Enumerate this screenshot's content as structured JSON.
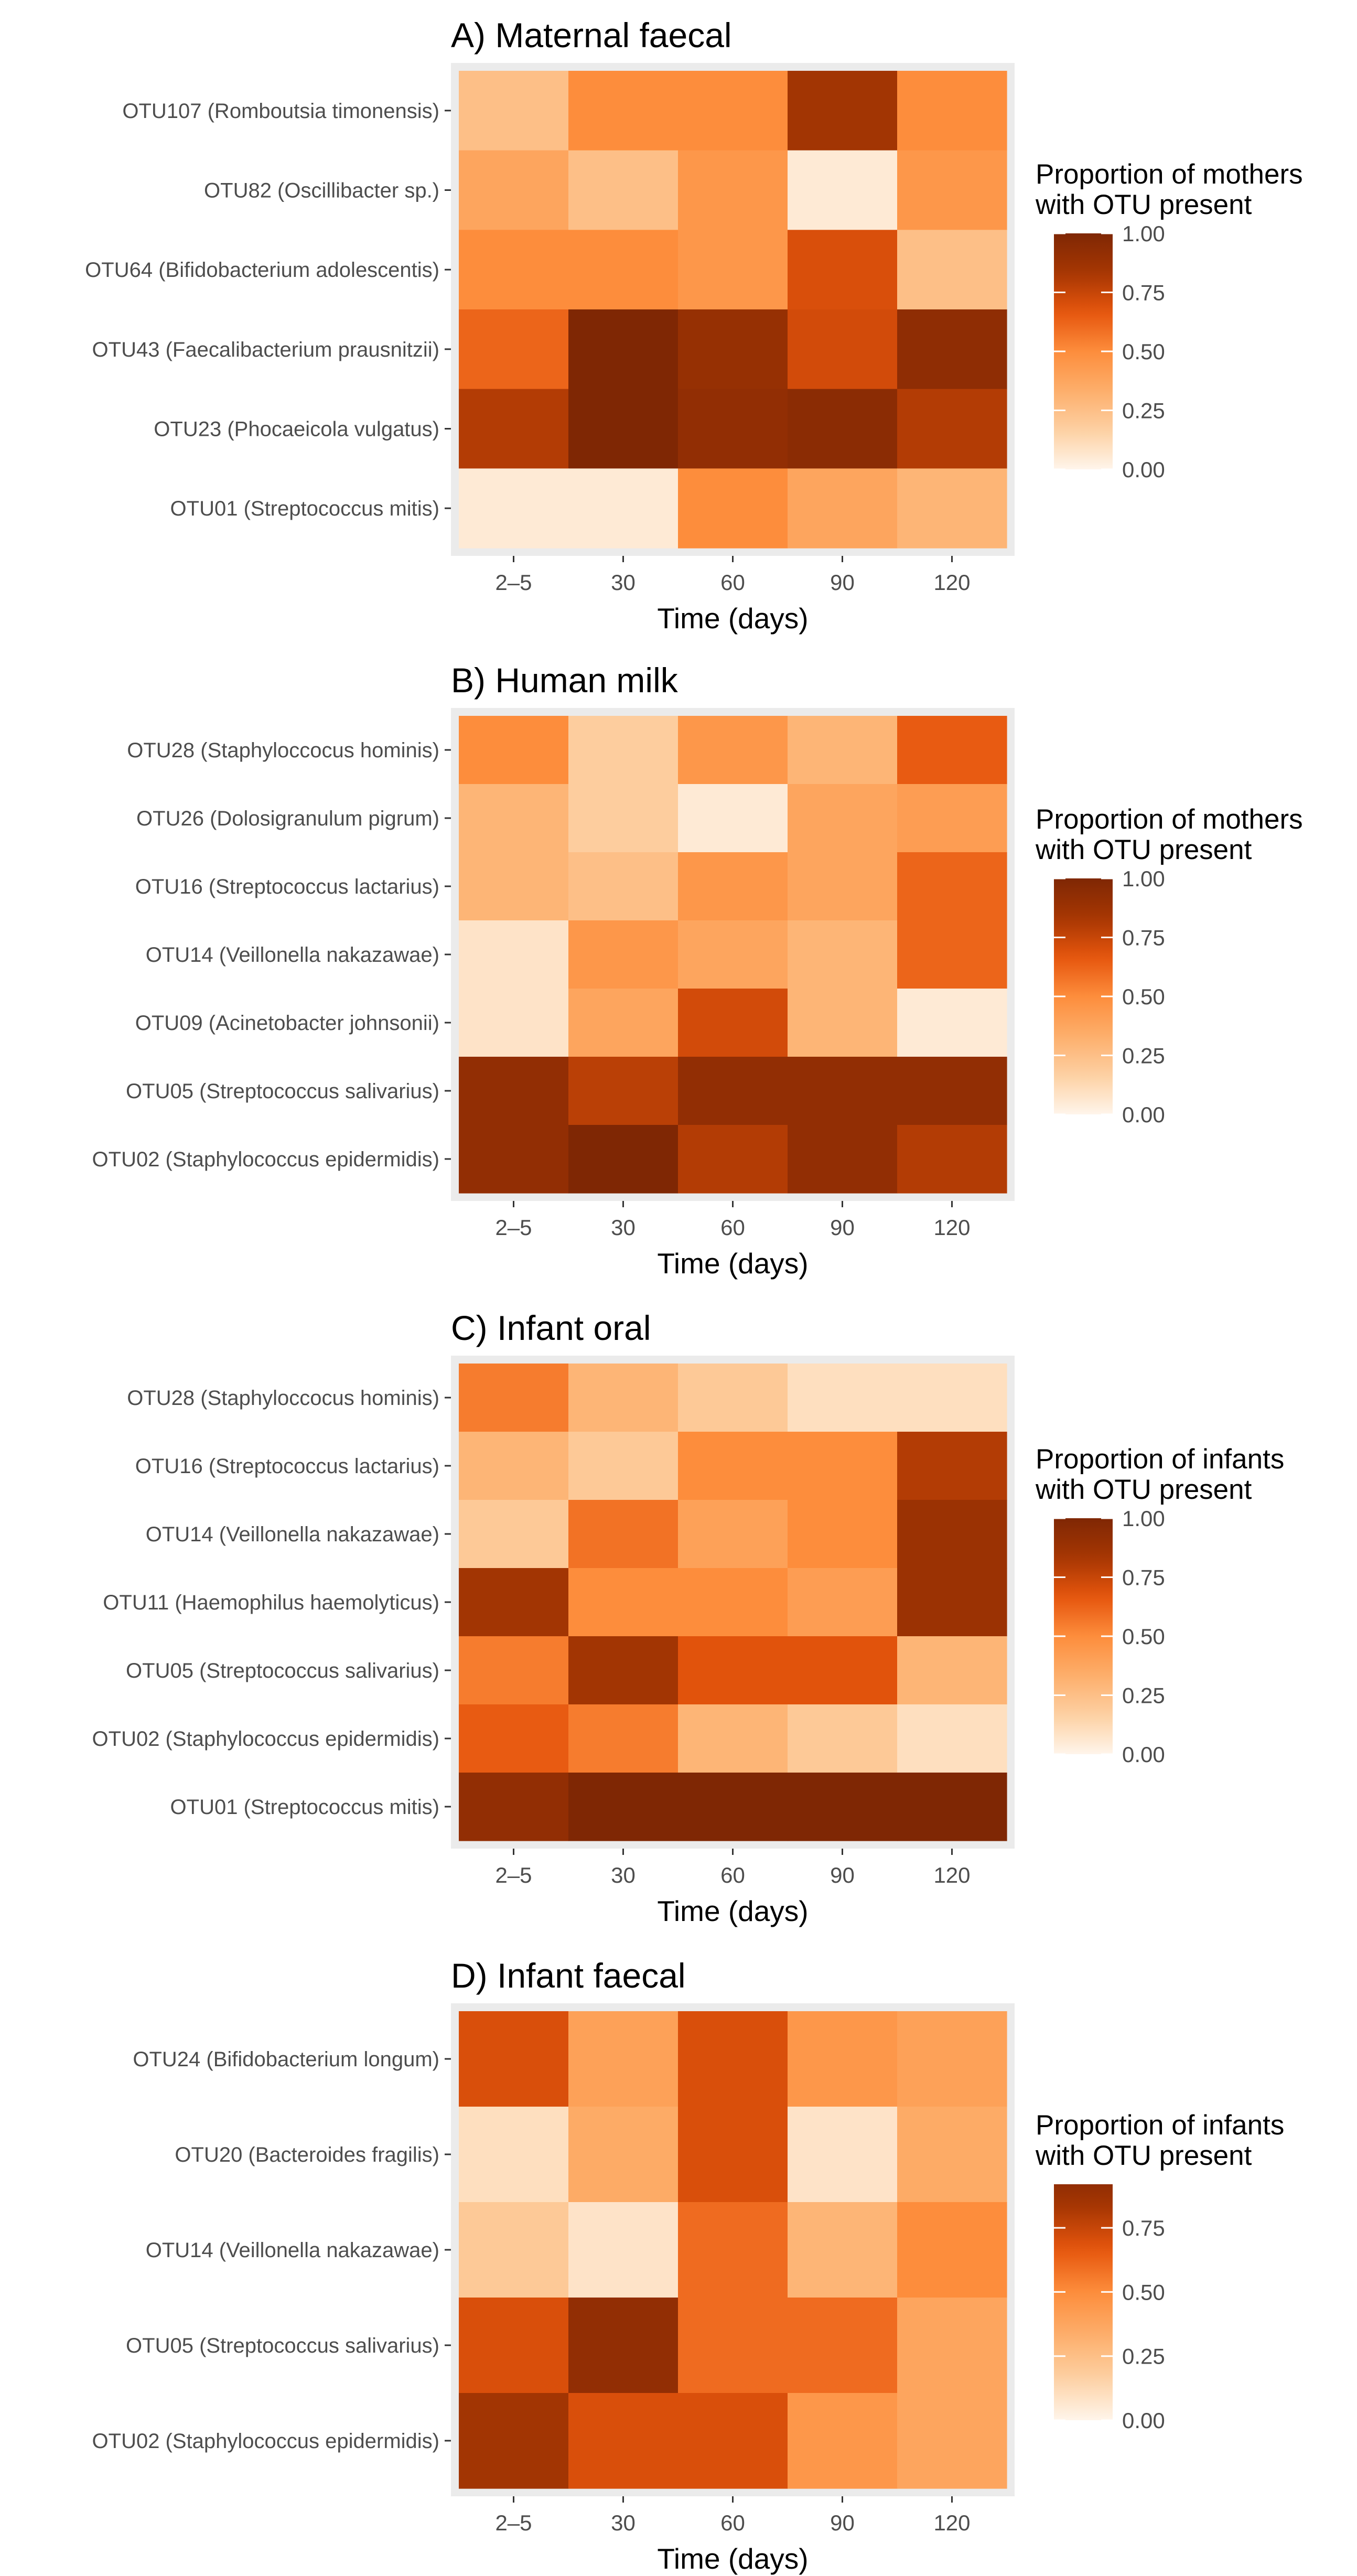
{
  "colors": {
    "scale": [
      "#fff5eb",
      "#fdd0a2",
      "#fdae6b",
      "#fd8d3c",
      "#e6550d",
      "#a63603",
      "#7f2704"
    ],
    "panel_background": "#ebebeb"
  },
  "chart_data": [
    {
      "type": "heatmap",
      "title": "A) Maternal faecal",
      "xlabel": "Time (days)",
      "ylabel": "",
      "categories": [
        "2–5",
        "30",
        "60",
        "90",
        "120"
      ],
      "rows": [
        "OTU107 (Romboutsia timonensis)",
        "OTU82 (Oscillibacter sp.)",
        "OTU64 (Bifidobacterium adolescentis)",
        "OTU43 (Faecalibacterium prausnitzii)",
        "OTU23 (Phocaeicola vulgatus)",
        "OTU01 (Streptococcus mitis)"
      ],
      "values": [
        [
          0.25,
          0.5,
          0.5,
          0.85,
          0.5
        ],
        [
          0.38,
          0.25,
          0.45,
          0.05,
          0.45
        ],
        [
          0.5,
          0.5,
          0.45,
          0.7,
          0.25
        ],
        [
          0.62,
          1.0,
          0.9,
          0.72,
          0.93
        ],
        [
          0.8,
          1.0,
          0.92,
          0.95,
          0.8
        ],
        [
          0.05,
          0.05,
          0.5,
          0.38,
          0.3
        ]
      ],
      "legend_title_line1": "Proportion of mothers",
      "legend_title_line2": "with OTU present",
      "legend_ticks": [
        "1.00",
        "0.75",
        "0.50",
        "0.25",
        "0.00"
      ],
      "legend_tick_values": [
        1.0,
        0.75,
        0.5,
        0.25,
        0.0
      ],
      "legend_range": [
        0,
        1.0
      ]
    },
    {
      "type": "heatmap",
      "title": "B) Human milk",
      "xlabel": "Time (days)",
      "ylabel": "",
      "categories": [
        "2–5",
        "30",
        "60",
        "90",
        "120"
      ],
      "rows": [
        "OTU28 (Staphyloccocus hominis)",
        "OTU26 (Dolosigranulum pigrum)",
        "OTU16 (Streptococcus lactarius)",
        "OTU14 (Veillonella nakazawae)",
        "OTU09 (Acinetobacter johnsonii)",
        "OTU05 (Streptococcus salivarius)",
        "OTU02 (Staphylococcus epidermidis)"
      ],
      "values": [
        [
          0.5,
          0.18,
          0.45,
          0.3,
          0.65
        ],
        [
          0.3,
          0.18,
          0.05,
          0.38,
          0.42
        ],
        [
          0.3,
          0.25,
          0.45,
          0.38,
          0.62
        ],
        [
          0.08,
          0.45,
          0.38,
          0.3,
          0.62
        ],
        [
          0.08,
          0.38,
          0.72,
          0.3,
          0.05
        ],
        [
          0.92,
          0.78,
          0.92,
          0.92,
          0.92
        ],
        [
          0.92,
          1.0,
          0.8,
          0.92,
          0.8
        ]
      ],
      "legend_title_line1": "Proportion of mothers",
      "legend_title_line2": "with OTU present",
      "legend_ticks": [
        "1.00",
        "0.75",
        "0.50",
        "0.25",
        "0.00"
      ],
      "legend_tick_values": [
        1.0,
        0.75,
        0.5,
        0.25,
        0.0
      ],
      "legend_range": [
        0,
        1.0
      ]
    },
    {
      "type": "heatmap",
      "title": "C) Infant oral",
      "xlabel": "Time (days)",
      "ylabel": "",
      "categories": [
        "2–5",
        "30",
        "60",
        "90",
        "120"
      ],
      "rows": [
        "OTU28 (Staphyloccocus hominis)",
        "OTU16 (Streptococcus lactarius)",
        "OTU14 (Veillonella nakazawae)",
        "OTU11 (Haemophilus haemolyticus)",
        "OTU05 (Streptococcus salivarius)",
        "OTU02 (Staphylococcus epidermidis)",
        "OTU01 (Streptococcus mitis)"
      ],
      "values": [
        [
          0.55,
          0.3,
          0.2,
          0.1,
          0.1
        ],
        [
          0.3,
          0.2,
          0.5,
          0.5,
          0.8
        ],
        [
          0.2,
          0.58,
          0.4,
          0.5,
          0.88
        ],
        [
          0.85,
          0.5,
          0.5,
          0.42,
          0.88
        ],
        [
          0.55,
          0.85,
          0.68,
          0.68,
          0.3
        ],
        [
          0.65,
          0.55,
          0.3,
          0.2,
          0.1
        ],
        [
          0.92,
          1.0,
          1.0,
          1.0,
          1.0
        ]
      ],
      "legend_title_line1": "Proportion of infants",
      "legend_title_line2": "with OTU present",
      "legend_ticks": [
        "1.00",
        "0.75",
        "0.50",
        "0.25",
        "0.00"
      ],
      "legend_tick_values": [
        1.0,
        0.75,
        0.5,
        0.25,
        0.0
      ],
      "legend_range": [
        0,
        1.0
      ]
    },
    {
      "type": "heatmap",
      "title": "D) Infant faecal",
      "xlabel": "Time (days)",
      "ylabel": "",
      "categories": [
        "2–5",
        "30",
        "60",
        "90",
        "120"
      ],
      "rows": [
        "OTU24 (Bifidobacterium longum)",
        "OTU20 (Bacteroides fragilis)",
        "OTU14 (Veillonella nakazawae)",
        "OTU05 (Streptococcus salivarius)",
        "OTU02 (Staphylococcus epidermidis)"
      ],
      "values": [
        [
          0.7,
          0.4,
          0.7,
          0.45,
          0.4
        ],
        [
          0.1,
          0.35,
          0.7,
          0.08,
          0.35
        ],
        [
          0.2,
          0.08,
          0.6,
          0.3,
          0.5
        ],
        [
          0.7,
          0.92,
          0.6,
          0.6,
          0.38
        ],
        [
          0.85,
          0.7,
          0.7,
          0.45,
          0.38
        ]
      ],
      "legend_title_line1": "Proportion of infants",
      "legend_title_line2": "with OTU present",
      "legend_ticks": [
        "0.75",
        "0.50",
        "0.25",
        "0.00"
      ],
      "legend_tick_values": [
        0.75,
        0.5,
        0.25,
        0.0
      ],
      "legend_range": [
        0,
        0.92
      ]
    }
  ]
}
